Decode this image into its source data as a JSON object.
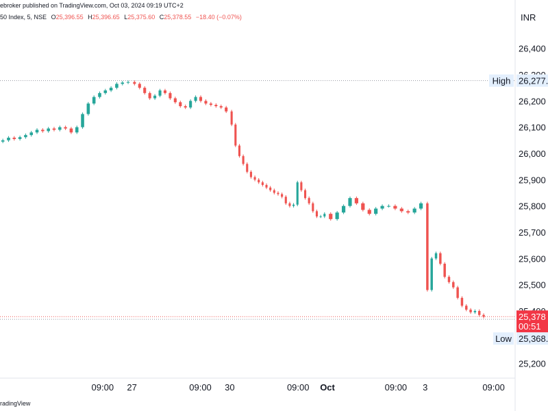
{
  "header": {
    "published": "ebroker published on TradingView.com, Oct 03, 2024 09:19 UTC+2"
  },
  "ohlc": {
    "symbol": "50 Index, 5, NSE",
    "o_label": "O",
    "o": "25,396.55",
    "h_label": "H",
    "h": "25,396.65",
    "l_label": "L",
    "l": "25,375.60",
    "c_label": "C",
    "c": "25,378.55",
    "change": "−18.40 (−0.07%)"
  },
  "footer": {
    "text": "radingView"
  },
  "chart_data": {
    "type": "candlestick",
    "currency": "INR",
    "y_ticks": [
      "26,400",
      "26,300",
      "26,200",
      "26,100",
      "26,000",
      "25,900",
      "25,800",
      "25,700",
      "25,600",
      "25,500",
      "25,400",
      "25,200"
    ],
    "y_tick_values": [
      26400,
      26300,
      26200,
      26100,
      26000,
      25900,
      25800,
      25700,
      25600,
      25500,
      25400,
      25200
    ],
    "ylim": [
      25160,
      26480
    ],
    "x_ticks": [
      {
        "label": "09:00",
        "bold": false,
        "x": 0.7
      },
      {
        "label": "27",
        "bold": false,
        "x": 1.0
      },
      {
        "label": "09:00",
        "bold": false,
        "x": 1.7
      },
      {
        "label": "30",
        "bold": false,
        "x": 2.0
      },
      {
        "label": "09:00",
        "bold": false,
        "x": 2.7
      },
      {
        "label": "Oct",
        "bold": true,
        "x": 3.0
      },
      {
        "label": "09:00",
        "bold": false,
        "x": 3.7
      },
      {
        "label": "3",
        "bold": false,
        "x": 4.0
      },
      {
        "label": "09:00",
        "bold": false,
        "x": 4.7
      }
    ],
    "xlim": [
      -0.35,
      4.92
    ],
    "high": {
      "label": "High",
      "value": 26277.35,
      "display": "26,277."
    },
    "low": {
      "label": "Low",
      "value": 25368.5,
      "display": "25,368."
    },
    "last": {
      "value": 25378.55,
      "display": "25,378",
      "countdown": "00:51"
    },
    "colors": {
      "up": "#26a69a",
      "down": "#ef5350",
      "grid_line": "#9598a1",
      "high_bg": "#e3effd",
      "low_bg": "#e3effd",
      "last_bg": "#f23645"
    },
    "sessions": [
      {
        "x0": -0.35,
        "x1": 0.99,
        "close": [
          26050,
          26060,
          26055,
          26062,
          26070,
          26080,
          26090,
          26085,
          26095,
          26090,
          26100,
          26095,
          26080,
          26100,
          26150,
          26190,
          26215,
          26230,
          26240,
          26250,
          26265,
          26270,
          26272
        ]
      },
      {
        "x0": 1.0,
        "x1": 1.99,
        "close": [
          26265,
          26250,
          26230,
          26210,
          26220,
          26240,
          26230,
          26210,
          26195,
          26180,
          26175,
          26200,
          26215,
          26200,
          26190,
          26185,
          26180,
          26175,
          26160
        ]
      },
      {
        "x0": 2.0,
        "x1": 2.99,
        "close": [
          26110,
          26030,
          25990,
          25960,
          25930,
          25910,
          25900,
          25890,
          25880,
          25870,
          25860,
          25850,
          25845,
          25835,
          25810,
          25800,
          25805,
          25890,
          25860,
          25830,
          25810,
          25780,
          25760,
          25760,
          25770
        ]
      },
      {
        "x0": 3.0,
        "x1": 3.99,
        "close": [
          25750,
          25775,
          25800,
          25830,
          25810,
          25785,
          25770,
          25790,
          25800,
          25800,
          25790,
          25780,
          25775,
          25790,
          25810
        ]
      },
      {
        "x0": 4.0,
        "x1": 4.62,
        "close": [
          25480,
          25600,
          25620,
          25580,
          25530,
          25510,
          25490,
          25450,
          25420,
          25405,
          25395,
          25400,
          25385,
          25378
        ]
      }
    ]
  }
}
